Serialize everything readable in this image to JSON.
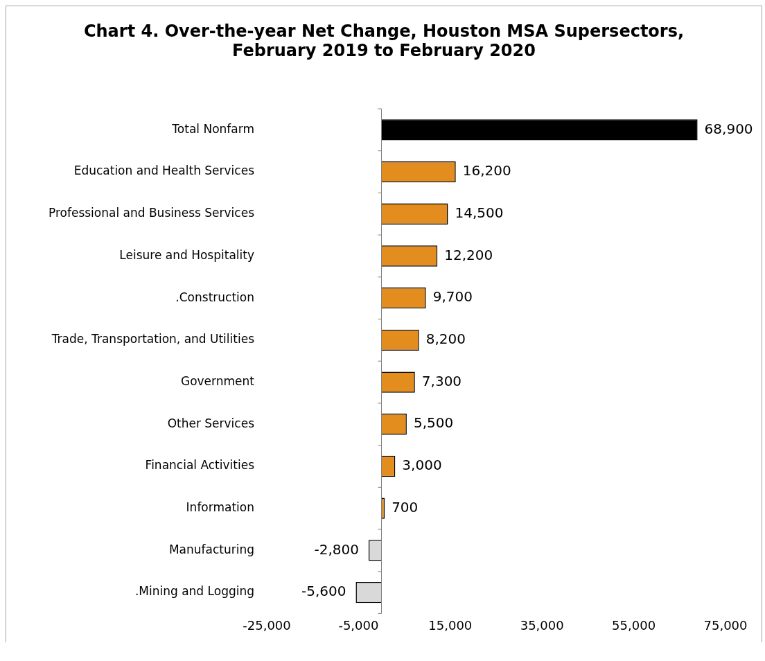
{
  "chart_data": {
    "type": "bar",
    "orientation": "horizontal",
    "title": "Chart 4. Over-the-year Net Change, Houston MSA Supersectors, February 2019 to February 2020",
    "categories": [
      "Total Nonfarm",
      "Education and Health Services",
      "Professional and Business Services",
      "Leisure and Hospitality",
      ".Construction",
      "Trade, Transportation, and Utilities",
      "Government",
      "Other Services",
      "Financial Activities",
      "Information",
      "Manufacturing",
      ".Mining and Logging"
    ],
    "values": [
      68900,
      16200,
      14500,
      12200,
      9700,
      8200,
      7300,
      5500,
      3000,
      700,
      -2800,
      -5600
    ],
    "colors": [
      "#000000",
      "#e38d1e",
      "#e38d1e",
      "#e38d1e",
      "#e38d1e",
      "#e38d1e",
      "#e38d1e",
      "#e38d1e",
      "#e38d1e",
      "#e38d1e",
      "#d9d9d9",
      "#d9d9d9"
    ],
    "value_labels": [
      "68,900",
      "16,200",
      "14,500",
      "12,200",
      "9,700",
      "8,200",
      "7,300",
      "5,500",
      "3,000",
      "700",
      "-2,800",
      "-5,600"
    ],
    "xlim": [
      -25000,
      75000
    ],
    "xticks": [
      {
        "value": -25000,
        "label": "-25,000"
      },
      {
        "value": -5000,
        "label": "-5,000"
      },
      {
        "value": 15000,
        "label": "15,000"
      },
      {
        "value": 35000,
        "label": "35,000"
      },
      {
        "value": 55000,
        "label": "55,000"
      },
      {
        "value": 75000,
        "label": "75,000"
      }
    ],
    "grid": false,
    "legend": false
  }
}
